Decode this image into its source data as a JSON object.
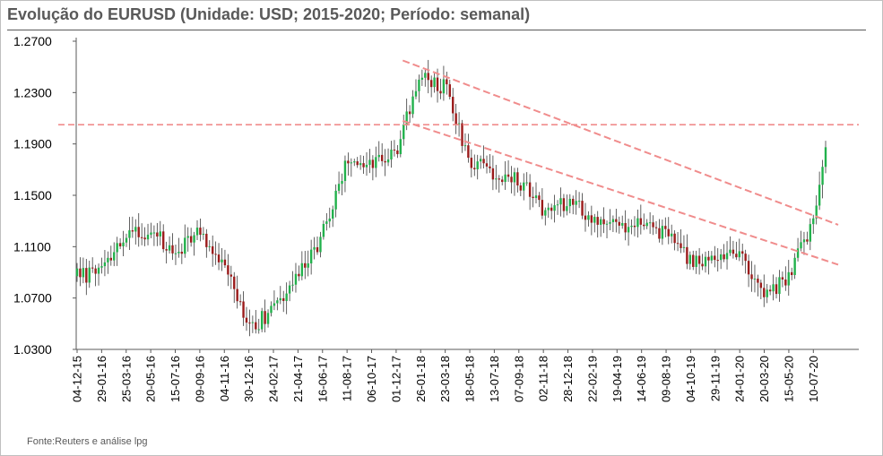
{
  "title": "Evolução do EURUSD (Unidade: USD; 2015-2020; Período: semanal)",
  "source": "Fonte:Reuters e análise lpg",
  "chart_data": {
    "type": "candlestick",
    "title": "Evolução do EURUSD (Unidade: USD; 2015-2020; Período: semanal)",
    "xlabel": "",
    "ylabel": "",
    "ylim": [
      1.03,
      1.27
    ],
    "y_ticks": [
      "1.2700",
      "1.2300",
      "1.1900",
      "1.1500",
      "1.1100",
      "1.0700",
      "1.0300"
    ],
    "x_tick_labels": [
      "04-12-15",
      "29-01-16",
      "25-03-16",
      "20-05-16",
      "15-07-16",
      "09-09-16",
      "04-11-16",
      "30-12-16",
      "24-02-17",
      "21-04-17",
      "16-06-17",
      "11-08-17",
      "06-10-17",
      "01-12-17",
      "26-01-18",
      "23-03-18",
      "18-05-18",
      "13-07-18",
      "07-09-18",
      "02-11-18",
      "28-12-18",
      "22-02-19",
      "19-04-19",
      "14-06-19",
      "09-08-19",
      "04-10-19",
      "29-11-19",
      "24-01-20",
      "20-03-20",
      "15-05-20",
      "10-07-20"
    ],
    "grid": false,
    "legend": "none",
    "colors": {
      "up": "#22b14c",
      "down": "#9b1b1b",
      "trend": "#f08c8c"
    },
    "close_path": [
      [
        "04-12-15",
        1.088
      ],
      [
        "29-01-16",
        1.089
      ],
      [
        "25-03-16",
        1.117
      ],
      [
        "20-05-16",
        1.122
      ],
      [
        "15-07-16",
        1.105
      ],
      [
        "09-09-16",
        1.122
      ],
      [
        "04-11-16",
        1.099
      ],
      [
        "30-12-16",
        1.046
      ],
      [
        "24-02-17",
        1.061
      ],
      [
        "21-04-17",
        1.086
      ],
      [
        "16-06-17",
        1.119
      ],
      [
        "11-08-17",
        1.18
      ],
      [
        "06-10-17",
        1.174
      ],
      [
        "01-12-17",
        1.185
      ],
      [
        "26-01-18",
        1.242
      ],
      [
        "23-03-18",
        1.234
      ],
      [
        "18-05-18",
        1.177
      ],
      [
        "13-07-18",
        1.168
      ],
      [
        "07-09-18",
        1.162
      ],
      [
        "02-11-18",
        1.138
      ],
      [
        "28-12-18",
        1.145
      ],
      [
        "22-02-19",
        1.134
      ],
      [
        "19-04-19",
        1.125
      ],
      [
        "14-06-19",
        1.128
      ],
      [
        "09-08-19",
        1.12
      ],
      [
        "04-10-19",
        1.097
      ],
      [
        "29-11-19",
        1.101
      ],
      [
        "24-01-20",
        1.103
      ],
      [
        "20-03-20",
        1.07
      ],
      [
        "15-05-20",
        1.088
      ],
      [
        "10-07-20",
        1.128
      ],
      [
        "end",
        1.183
      ]
    ],
    "reference_lines": [
      {
        "type": "horizontal",
        "y": 1.205,
        "style": "dashed"
      },
      {
        "type": "trend",
        "from": [
          "26-01-18",
          1.255
        ],
        "to": [
          "end",
          1.127
        ],
        "style": "dashed"
      },
      {
        "type": "trend",
        "from": [
          "26-01-18",
          1.208
        ],
        "to": [
          "end",
          1.096
        ],
        "style": "dashed"
      }
    ]
  }
}
